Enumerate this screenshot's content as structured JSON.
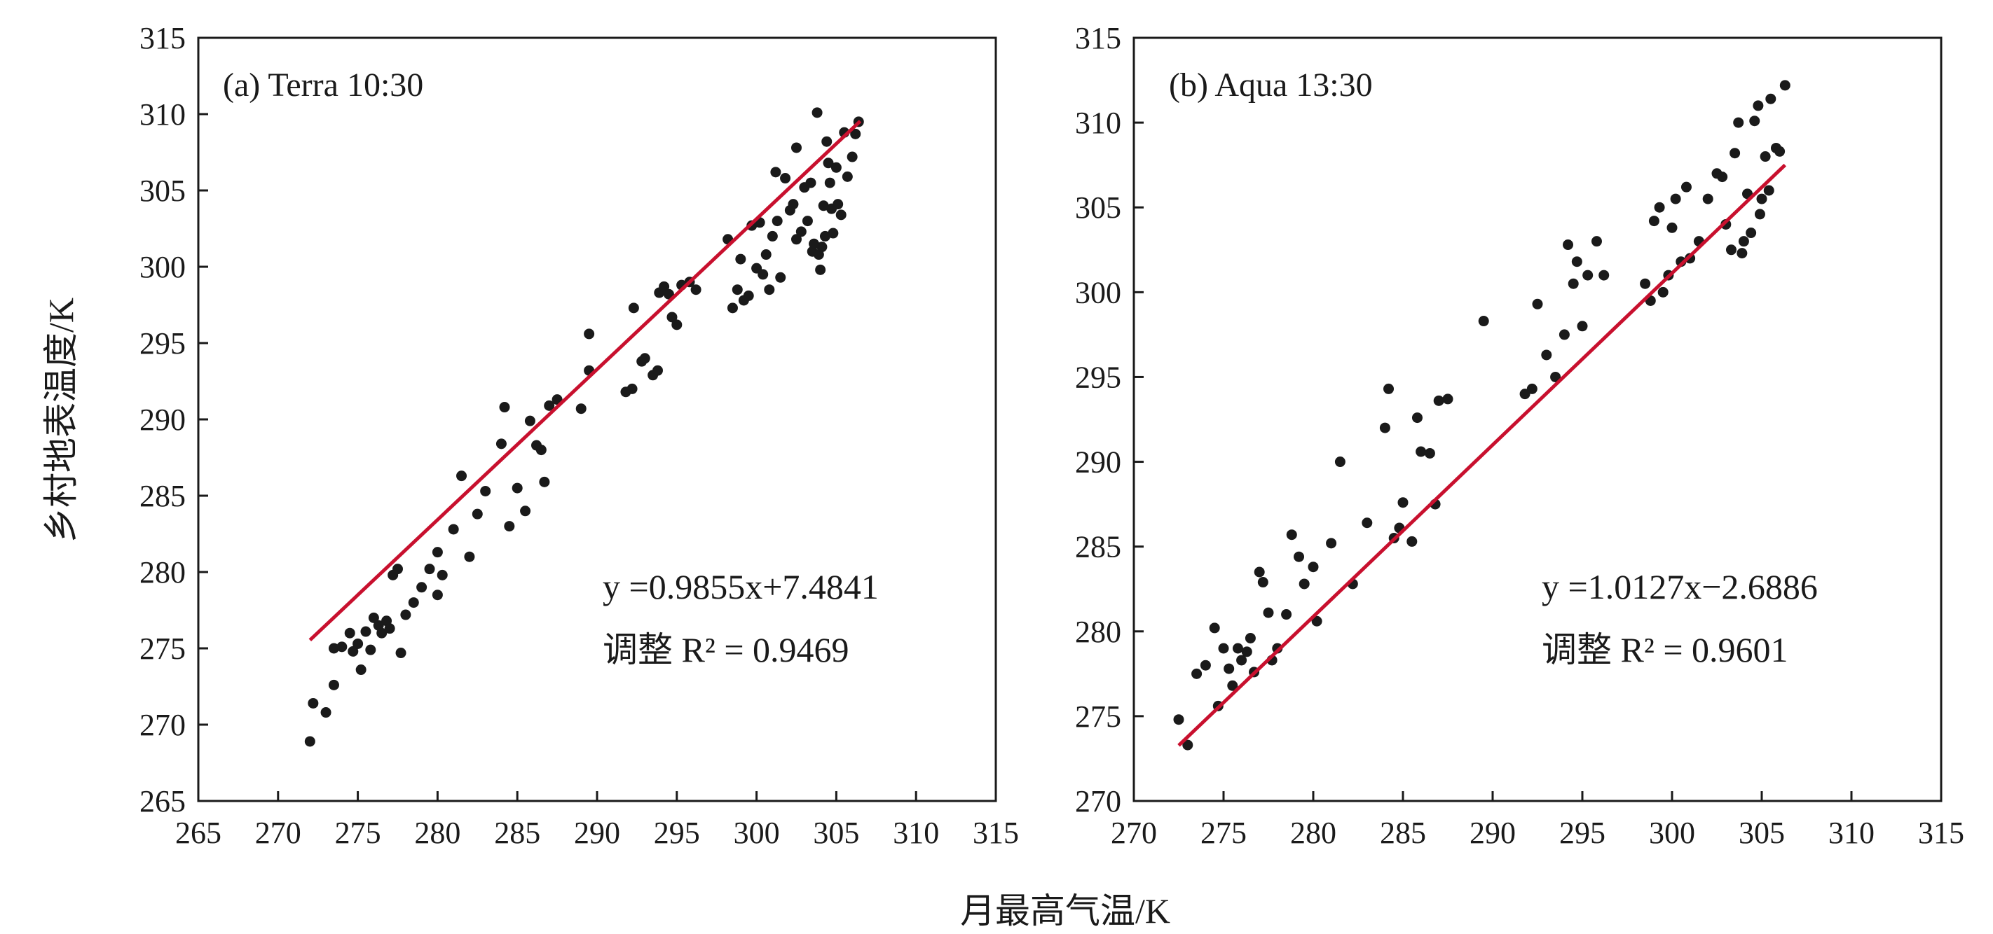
{
  "chart_data": [
    {
      "type": "scatter",
      "title": "(a) Terra 10:30",
      "xlim": [
        265,
        315
      ],
      "ylim": [
        265,
        315
      ],
      "xticks": [
        "265",
        "270",
        "275",
        "280",
        "285",
        "290",
        "295",
        "300",
        "305",
        "310",
        "315"
      ],
      "yticks": [
        "265",
        "270",
        "275",
        "280",
        "285",
        "290",
        "295",
        "300",
        "305",
        "310",
        "315"
      ],
      "series": [
        {
          "points": [
            [
              272.0,
              268.9
            ],
            [
              272.2,
              271.4
            ],
            [
              273.0,
              270.8
            ],
            [
              273.5,
              272.6
            ],
            [
              273.5,
              275.0
            ],
            [
              274.0,
              275.1
            ],
            [
              274.5,
              276.0
            ],
            [
              274.7,
              274.8
            ],
            [
              275.0,
              275.3
            ],
            [
              275.2,
              273.6
            ],
            [
              275.5,
              276.1
            ],
            [
              275.8,
              274.9
            ],
            [
              276.0,
              277.0
            ],
            [
              276.3,
              276.5
            ],
            [
              276.5,
              276.0
            ],
            [
              276.8,
              276.8
            ],
            [
              277.0,
              276.3
            ],
            [
              277.2,
              279.8
            ],
            [
              277.5,
              280.2
            ],
            [
              277.7,
              274.7
            ],
            [
              278.0,
              277.2
            ],
            [
              278.5,
              278.0
            ],
            [
              279.0,
              279.0
            ],
            [
              279.5,
              280.2
            ],
            [
              280.0,
              281.3
            ],
            [
              280.0,
              278.5
            ],
            [
              280.3,
              279.8
            ],
            [
              281.0,
              282.8
            ],
            [
              281.5,
              286.3
            ],
            [
              282.0,
              281.0
            ],
            [
              282.5,
              283.8
            ],
            [
              283.0,
              285.3
            ],
            [
              284.0,
              288.4
            ],
            [
              284.2,
              290.8
            ],
            [
              284.5,
              283.0
            ],
            [
              285.0,
              285.5
            ],
            [
              285.5,
              284.0
            ],
            [
              285.8,
              289.9
            ],
            [
              286.2,
              288.3
            ],
            [
              286.5,
              288.0
            ],
            [
              286.7,
              285.9
            ],
            [
              287.0,
              290.9
            ],
            [
              287.5,
              291.3
            ],
            [
              289.5,
              295.6
            ],
            [
              289.5,
              293.2
            ],
            [
              289.0,
              290.7
            ],
            [
              291.8,
              291.8
            ],
            [
              292.2,
              292.0
            ],
            [
              292.3,
              297.3
            ],
            [
              292.8,
              293.8
            ],
            [
              293.0,
              294.0
            ],
            [
              293.5,
              292.9
            ],
            [
              293.8,
              293.2
            ],
            [
              293.9,
              298.3
            ],
            [
              294.2,
              298.7
            ],
            [
              294.5,
              298.2
            ],
            [
              294.7,
              296.7
            ],
            [
              295.0,
              296.2
            ],
            [
              295.3,
              298.8
            ],
            [
              295.8,
              299.0
            ],
            [
              296.2,
              298.5
            ],
            [
              298.2,
              301.8
            ],
            [
              298.5,
              297.3
            ],
            [
              298.8,
              298.5
            ],
            [
              299.0,
              300.5
            ],
            [
              299.2,
              297.8
            ],
            [
              299.5,
              298.1
            ],
            [
              299.7,
              302.7
            ],
            [
              300.0,
              299.9
            ],
            [
              300.2,
              302.9
            ],
            [
              300.4,
              299.5
            ],
            [
              300.6,
              300.8
            ],
            [
              300.8,
              298.5
            ],
            [
              301.0,
              302.0
            ],
            [
              301.2,
              306.2
            ],
            [
              301.3,
              303.0
            ],
            [
              301.5,
              299.3
            ],
            [
              301.8,
              305.8
            ],
            [
              302.1,
              303.7
            ],
            [
              302.3,
              304.1
            ],
            [
              302.5,
              301.8
            ],
            [
              302.8,
              302.3
            ],
            [
              302.5,
              307.8
            ],
            [
              303.0,
              305.2
            ],
            [
              303.2,
              303.0
            ],
            [
              303.4,
              305.5
            ],
            [
              303.5,
              301.0
            ],
            [
              303.6,
              301.5
            ],
            [
              303.8,
              310.1
            ],
            [
              303.9,
              300.8
            ],
            [
              304.0,
              299.8
            ],
            [
              304.1,
              301.3
            ],
            [
              304.2,
              304.0
            ],
            [
              304.3,
              302.0
            ],
            [
              304.4,
              308.2
            ],
            [
              304.5,
              306.8
            ],
            [
              304.6,
              305.5
            ],
            [
              304.7,
              303.8
            ],
            [
              304.8,
              302.2
            ],
            [
              305.0,
              306.5
            ],
            [
              305.1,
              304.1
            ],
            [
              305.3,
              303.4
            ],
            [
              305.5,
              308.8
            ],
            [
              305.7,
              305.9
            ],
            [
              306.0,
              307.2
            ],
            [
              306.2,
              308.7
            ],
            [
              306.4,
              309.5
            ]
          ]
        }
      ],
      "fit": {
        "slope": 0.9855,
        "intercept": 7.4841,
        "x_range": [
          272,
          306.5
        ]
      },
      "equation_label": "y =0.9855x+7.4841",
      "r2_label": "调整 R² = 0.9469"
    },
    {
      "type": "scatter",
      "title": "(b) Aqua 13:30",
      "xlim": [
        270,
        315
      ],
      "ylim": [
        270,
        315
      ],
      "xticks": [
        "270",
        "275",
        "280",
        "285",
        "290",
        "295",
        "300",
        "305",
        "310",
        "315"
      ],
      "yticks": [
        "270",
        "275",
        "280",
        "285",
        "290",
        "295",
        "300",
        "305",
        "310",
        "315"
      ],
      "series": [
        {
          "points": [
            [
              272.5,
              274.8
            ],
            [
              273.0,
              273.3
            ],
            [
              273.5,
              277.5
            ],
            [
              274.0,
              278.0
            ],
            [
              274.5,
              280.2
            ],
            [
              274.7,
              275.6
            ],
            [
              275.0,
              279.0
            ],
            [
              275.3,
              277.8
            ],
            [
              275.5,
              276.8
            ],
            [
              275.8,
              279.0
            ],
            [
              276.0,
              278.3
            ],
            [
              276.3,
              278.8
            ],
            [
              276.5,
              279.6
            ],
            [
              276.7,
              277.6
            ],
            [
              277.0,
              283.5
            ],
            [
              277.2,
              282.9
            ],
            [
              277.5,
              281.1
            ],
            [
              277.7,
              278.3
            ],
            [
              278.0,
              279.0
            ],
            [
              278.5,
              281.0
            ],
            [
              278.8,
              285.7
            ],
            [
              279.2,
              284.4
            ],
            [
              279.5,
              282.8
            ],
            [
              280.0,
              283.8
            ],
            [
              280.2,
              280.6
            ],
            [
              281.0,
              285.2
            ],
            [
              281.5,
              290.0
            ],
            [
              282.2,
              282.8
            ],
            [
              283.0,
              286.4
            ],
            [
              284.0,
              292.0
            ],
            [
              284.2,
              294.3
            ],
            [
              284.5,
              285.5
            ],
            [
              284.8,
              286.1
            ],
            [
              285.0,
              287.6
            ],
            [
              285.5,
              285.3
            ],
            [
              285.8,
              292.6
            ],
            [
              286.0,
              290.6
            ],
            [
              286.5,
              290.5
            ],
            [
              286.8,
              287.5
            ],
            [
              287.0,
              293.6
            ],
            [
              287.5,
              293.7
            ],
            [
              289.5,
              298.3
            ],
            [
              291.8,
              294.0
            ],
            [
              292.2,
              294.3
            ],
            [
              292.5,
              299.3
            ],
            [
              293.0,
              296.3
            ],
            [
              293.5,
              295.0
            ],
            [
              294.0,
              297.5
            ],
            [
              294.2,
              302.8
            ],
            [
              294.5,
              300.5
            ],
            [
              294.7,
              301.8
            ],
            [
              295.0,
              298.0
            ],
            [
              295.3,
              301.0
            ],
            [
              295.8,
              303.0
            ],
            [
              296.2,
              301.0
            ],
            [
              298.5,
              300.5
            ],
            [
              298.8,
              299.5
            ],
            [
              299.0,
              304.2
            ],
            [
              299.3,
              305.0
            ],
            [
              299.5,
              300.0
            ],
            [
              299.8,
              301.0
            ],
            [
              300.0,
              303.8
            ],
            [
              300.2,
              305.5
            ],
            [
              300.5,
              301.8
            ],
            [
              300.8,
              306.2
            ],
            [
              301.0,
              302.0
            ],
            [
              301.5,
              303.0
            ],
            [
              302.0,
              305.5
            ],
            [
              302.5,
              307.0
            ],
            [
              302.8,
              306.8
            ],
            [
              303.0,
              304.0
            ],
            [
              303.3,
              302.5
            ],
            [
              303.5,
              308.2
            ],
            [
              303.7,
              310.0
            ],
            [
              303.9,
              302.3
            ],
            [
              304.0,
              303.0
            ],
            [
              304.2,
              305.8
            ],
            [
              304.4,
              303.5
            ],
            [
              304.6,
              310.1
            ],
            [
              304.8,
              311.0
            ],
            [
              305.0,
              305.5
            ],
            [
              305.2,
              308.0
            ],
            [
              305.5,
              311.4
            ],
            [
              305.8,
              308.5
            ],
            [
              306.0,
              308.3
            ],
            [
              306.3,
              312.2
            ],
            [
              305.4,
              306.0
            ],
            [
              304.9,
              304.6
            ]
          ]
        }
      ],
      "fit": {
        "slope": 1.0127,
        "intercept": -2.6886,
        "x_range": [
          272.5,
          306.3
        ]
      },
      "equation_label": "y =1.0127x−2.6886",
      "r2_label": "调整 R² = 0.9601"
    }
  ],
  "xlabel": "月最高气温/K",
  "ylabel": "乡村地表温度/K",
  "colors": {
    "points": "#1a1a1a",
    "fit_line": "#c8102e",
    "frame": "#1a1a1a"
  }
}
